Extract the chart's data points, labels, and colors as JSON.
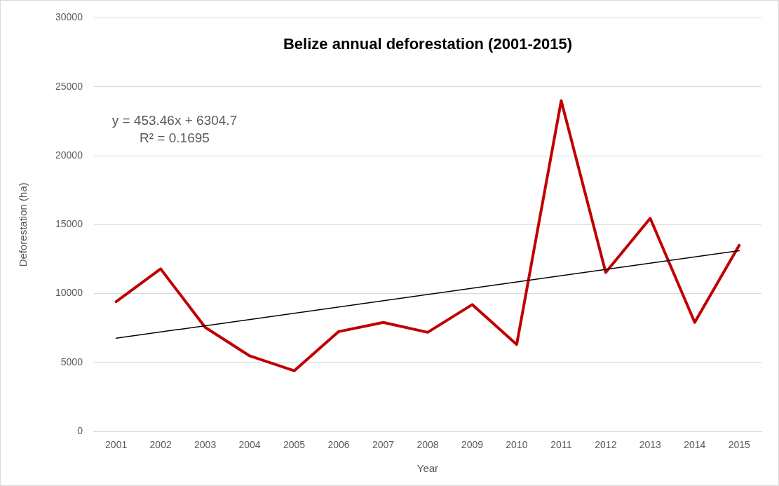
{
  "chart_data": {
    "type": "line",
    "title": "Belize annual deforestation (2001-2015)",
    "xlabel": "Year",
    "ylabel": "Deforestation (ha)",
    "categories": [
      "2001",
      "2002",
      "2003",
      "2004",
      "2005",
      "2006",
      "2007",
      "2008",
      "2009",
      "2010",
      "2011",
      "2012",
      "2013",
      "2014",
      "2015"
    ],
    "series": [
      {
        "color": "#c00000",
        "values": [
          9410,
          11790,
          7550,
          5480,
          4400,
          7240,
          7910,
          7190,
          9200,
          6310,
          23990,
          11530,
          15460,
          7910,
          13500
        ]
      },
      {
        "type": "line",
        "color": "#000000",
        "values": [
          6760,
          null,
          null,
          null,
          null,
          null,
          null,
          null,
          null,
          null,
          null,
          null,
          null,
          null,
          13110
        ]
      }
    ],
    "ylim": [
      0,
      30000
    ],
    "yticks": [
      0,
      5000,
      10000,
      15000,
      20000,
      25000,
      30000
    ],
    "grid": "y",
    "legend": false,
    "marker": "none",
    "line_style": "solid",
    "annotations": [
      "y = 453.46x + 6304.7",
      "R² = 0.1695"
    ]
  }
}
